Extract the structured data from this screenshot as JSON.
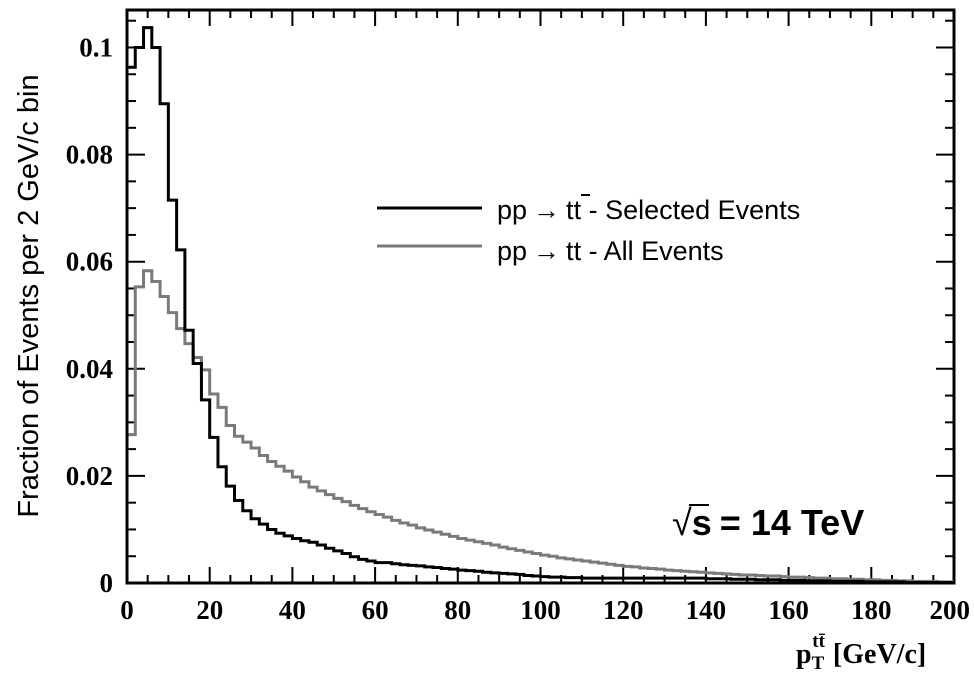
{
  "chart_data": {
    "type": "line",
    "style": "step-histogram",
    "xlabel_main": "p",
    "xlabel_sub": "T",
    "xlabel_sup": "tt̄",
    "xlabel_unit": "[GeV/c]",
    "ylabel": "Fraction of Events per 2 GeV/c bin",
    "xlim": [
      0,
      200
    ],
    "ylim": [
      0,
      0.107
    ],
    "x_ticks": [
      0,
      20,
      40,
      60,
      80,
      100,
      120,
      140,
      160,
      180,
      200
    ],
    "x_tick_labels": [
      "0",
      "20",
      "40",
      "60",
      "80",
      "100",
      "120",
      "140",
      "160",
      "180",
      "200"
    ],
    "y_ticks": [
      0,
      0.02,
      0.04,
      0.06,
      0.08,
      0.1
    ],
    "y_tick_labels": [
      "0",
      "0.02",
      "0.04",
      "0.06",
      "0.08",
      "0.1"
    ],
    "annotation": {
      "sqrt": "√",
      "s_letter": "s",
      "rest": "= 14 TeV"
    },
    "legend_placement": "upper-right",
    "bin_width": 2,
    "series": [
      {
        "name": "pp → tt̄ - Selected Events",
        "legend_prefix": "pp",
        "legend_arrow": "→",
        "legend_t1": "t",
        "legend_t2": "t",
        "legend_bar": true,
        "legend_suffix": " - Selected Events",
        "color": "#000000",
        "values": [
          0.0963,
          0.1,
          0.1037,
          0.1,
          0.0895,
          0.0715,
          0.0622,
          0.0472,
          0.041,
          0.0342,
          0.0272,
          0.0217,
          0.0181,
          0.0154,
          0.0135,
          0.012,
          0.011,
          0.01,
          0.0093,
          0.0088,
          0.0083,
          0.0079,
          0.0076,
          0.0071,
          0.0065,
          0.006,
          0.0055,
          0.0049,
          0.0044,
          0.0041,
          0.0038,
          0.0038,
          0.0036,
          0.0034,
          0.0033,
          0.0032,
          0.003,
          0.0029,
          0.0027,
          0.0026,
          0.0024,
          0.0023,
          0.0022,
          0.002,
          0.0019,
          0.0018,
          0.0017,
          0.0016,
          0.0014,
          0.0013,
          0.0012,
          0.0011,
          0.0011,
          0.001,
          0.001,
          0.0009,
          0.0009,
          0.0009,
          0.0009,
          0.0009,
          0.0009,
          0.0009,
          0.0009,
          0.0009,
          0.0009,
          0.0009,
          0.0009,
          0.0009,
          0.0009,
          0.0009,
          0.0008,
          0.0008,
          0.0008,
          0.0007,
          0.0007,
          0.0007,
          0.0006,
          0.0006,
          0.0006,
          0.0005,
          0.0005,
          0.0005,
          0.0004,
          0.0004,
          0.0004,
          0.0003,
          0.0003,
          0.0003,
          0.0003,
          0.0002,
          0.0002,
          0.0002,
          0.0002,
          0.0002,
          0.0001,
          0.0001,
          0.0001,
          0.0001,
          0.0001,
          0.0001
        ]
      },
      {
        "name": "pp → tt - All Events",
        "legend_prefix": "pp",
        "legend_arrow": "→",
        "legend_t1": "t",
        "legend_t2": "t",
        "legend_bar": false,
        "legend_suffix": " - All Events",
        "color": "#7a7a7a",
        "values": [
          0.0277,
          0.0553,
          0.0583,
          0.0563,
          0.0535,
          0.0505,
          0.0475,
          0.0447,
          0.0421,
          0.0398,
          0.0353,
          0.0328,
          0.0294,
          0.0274,
          0.0263,
          0.0252,
          0.0238,
          0.0227,
          0.0218,
          0.0209,
          0.0198,
          0.0189,
          0.0179,
          0.0172,
          0.0165,
          0.0158,
          0.0152,
          0.0145,
          0.0139,
          0.0133,
          0.0128,
          0.0123,
          0.0117,
          0.0112,
          0.0108,
          0.0103,
          0.0099,
          0.0095,
          0.0091,
          0.0087,
          0.0083,
          0.008,
          0.0077,
          0.0074,
          0.0071,
          0.0067,
          0.0064,
          0.0061,
          0.0058,
          0.0055,
          0.0052,
          0.005,
          0.0047,
          0.0045,
          0.0043,
          0.0041,
          0.0039,
          0.0037,
          0.0035,
          0.0033,
          0.0031,
          0.003,
          0.0028,
          0.0027,
          0.0026,
          0.0024,
          0.0023,
          0.0022,
          0.0021,
          0.002,
          0.0019,
          0.0018,
          0.0017,
          0.0016,
          0.0015,
          0.0015,
          0.0014,
          0.0013,
          0.0013,
          0.0012,
          0.0011,
          0.0011,
          0.001,
          0.0009,
          0.0009,
          0.0008,
          0.0008,
          0.0007,
          0.0007,
          0.0006,
          0.0006,
          0.0005,
          0.0005,
          0.0004,
          0.0004,
          0.0003,
          0.0003,
          0.0003,
          0.0002,
          0.0002
        ]
      }
    ]
  }
}
